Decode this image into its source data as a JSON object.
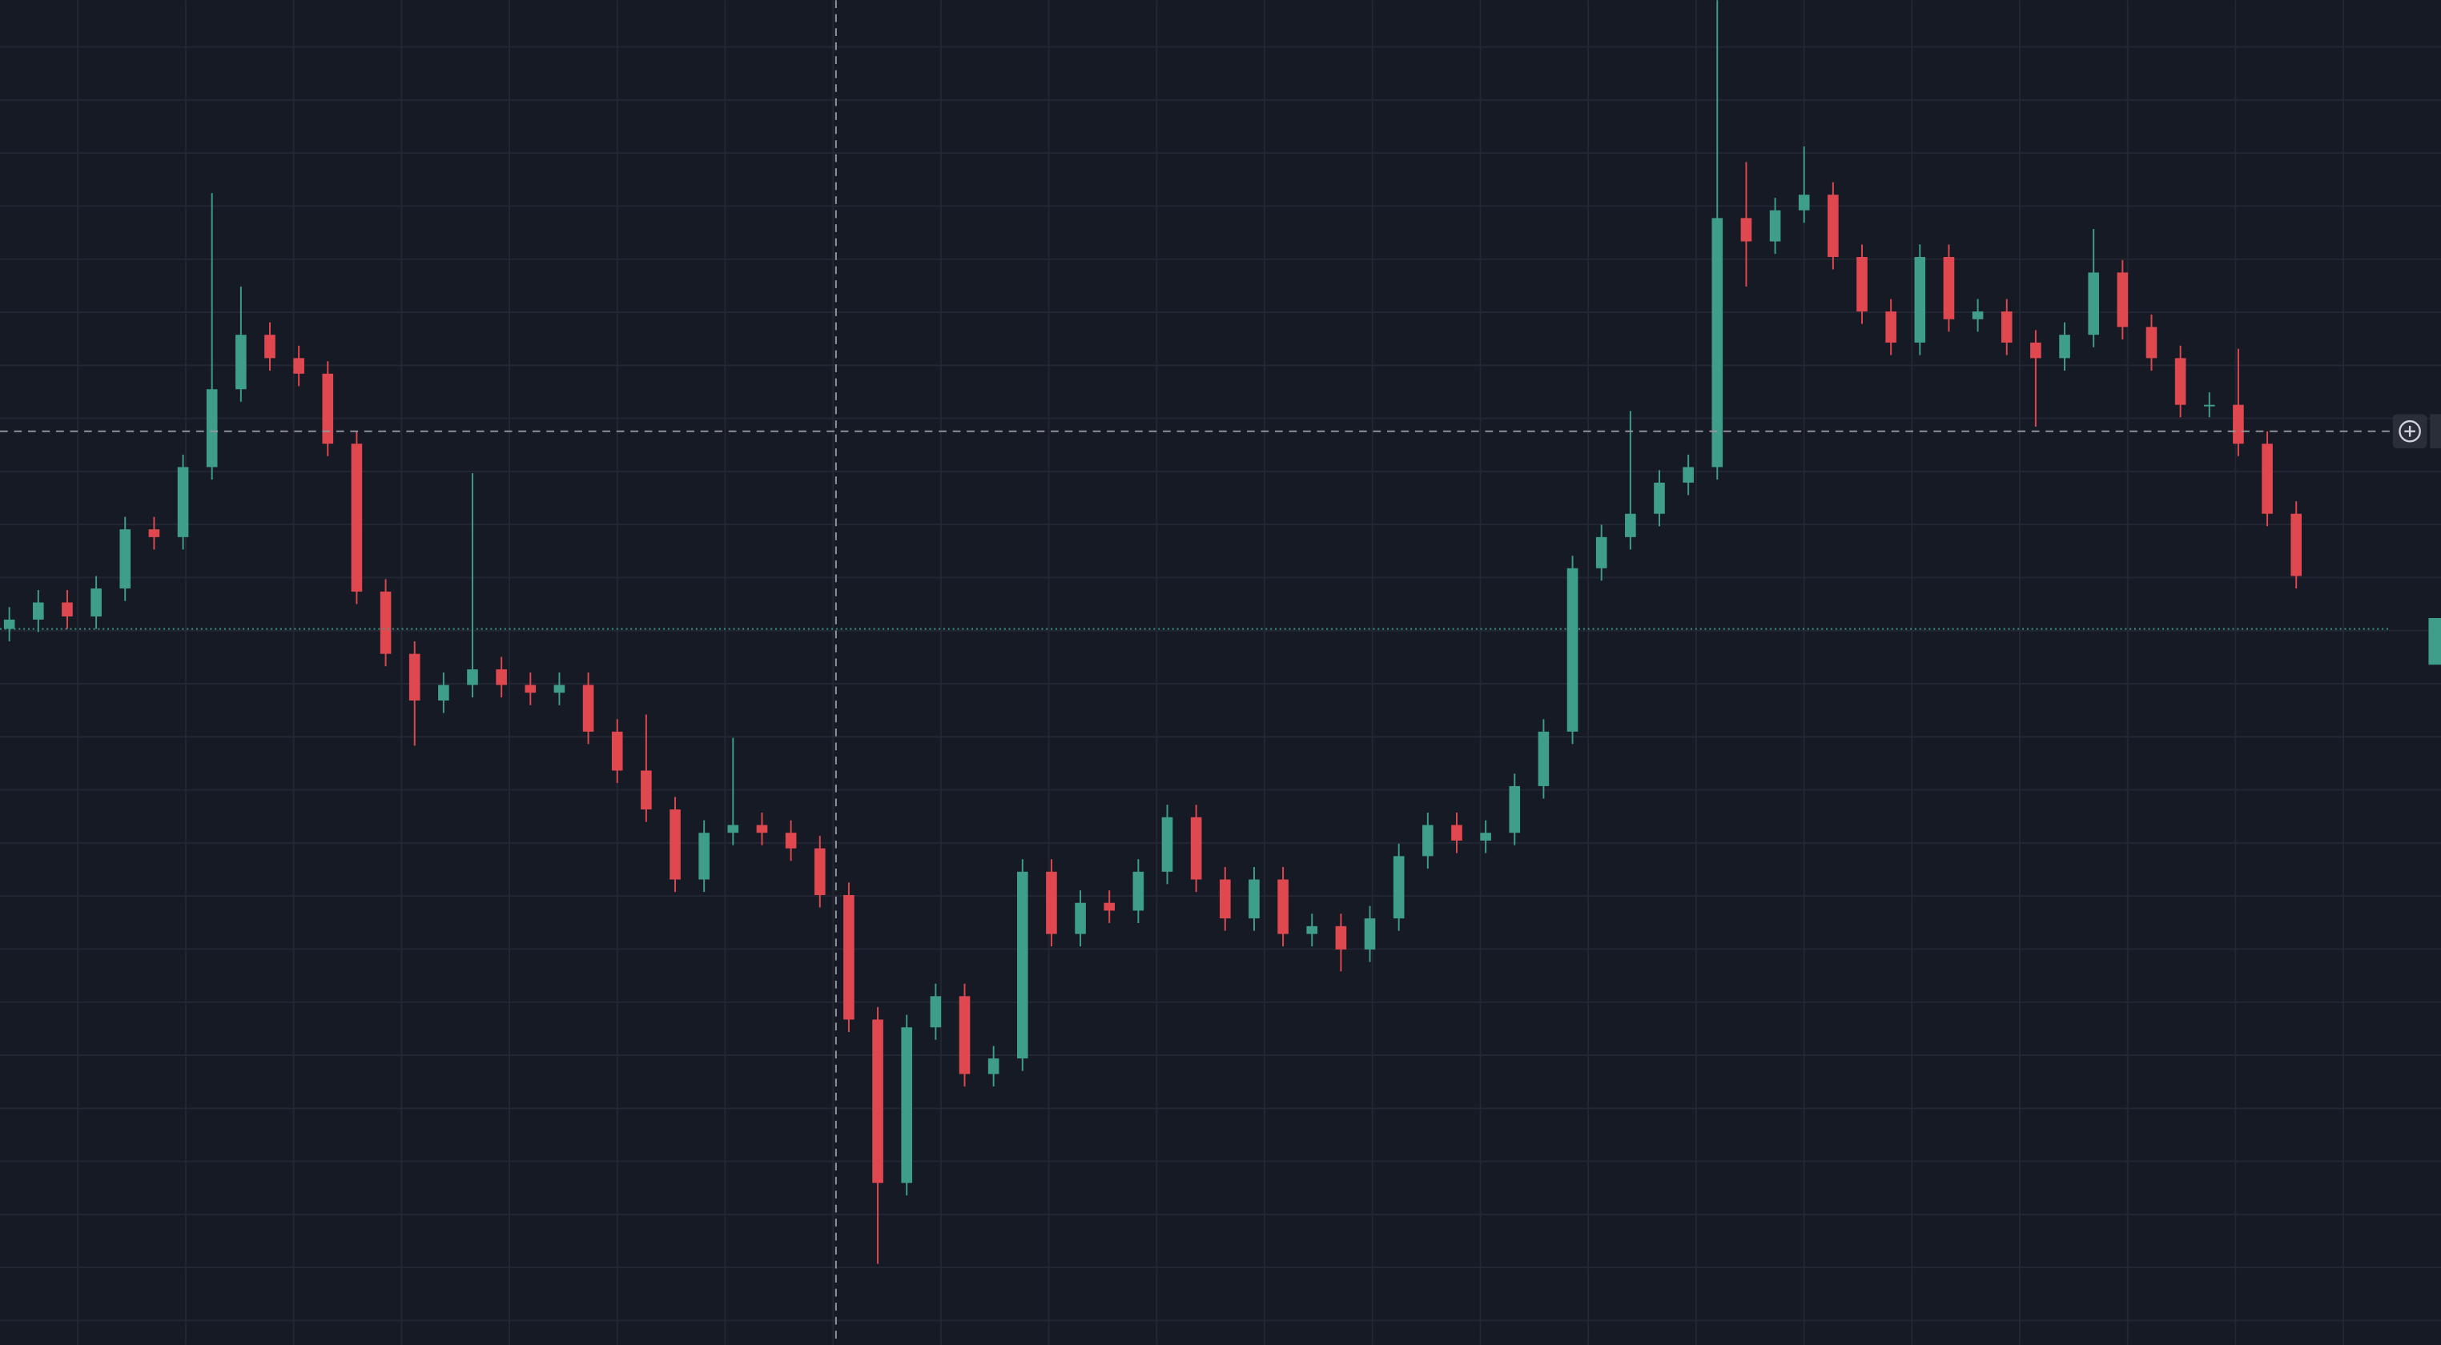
{
  "chart_data": {
    "type": "candlestick",
    "open": [
      460,
      466,
      477,
      468,
      486,
      524,
      519,
      564,
      614,
      649,
      634,
      624,
      579,
      484,
      444,
      414,
      424,
      434,
      424,
      419,
      424,
      394,
      369,
      344,
      299,
      329,
      334,
      329,
      319,
      289,
      209,
      104,
      204,
      224,
      174,
      184,
      304,
      264,
      284,
      279,
      304,
      339,
      299,
      274,
      299,
      264,
      269,
      254,
      274,
      314,
      334,
      324,
      329,
      359,
      394,
      499,
      519,
      534,
      554,
      564,
      724,
      709,
      729,
      739,
      699,
      664,
      644,
      699,
      659,
      664,
      644,
      634,
      649,
      689,
      654,
      634,
      604,
      604,
      579,
      534
    ],
    "high": [
      474,
      485,
      485,
      494,
      532,
      532,
      572,
      740,
      680,
      657,
      642,
      632,
      587,
      492,
      452,
      432,
      560,
      442,
      432,
      432,
      432,
      402,
      405,
      352,
      337,
      390,
      342,
      337,
      327,
      297,
      217,
      212,
      232,
      232,
      192,
      312,
      312,
      292,
      292,
      312,
      347,
      347,
      307,
      307,
      307,
      277,
      277,
      282,
      322,
      342,
      342,
      337,
      367,
      402,
      507,
      527,
      600,
      562,
      572,
      864,
      760,
      737,
      770,
      747,
      707,
      672,
      707,
      707,
      672,
      672,
      652,
      657,
      717,
      697,
      662,
      642,
      612,
      640,
      587,
      542
    ],
    "low": [
      452,
      458,
      460,
      460,
      478,
      511,
      511,
      556,
      606,
      626,
      616,
      571,
      476,
      436,
      385,
      406,
      416,
      416,
      411,
      411,
      386,
      361,
      336,
      291,
      291,
      321,
      321,
      311,
      281,
      201,
      52,
      96,
      196,
      166,
      166,
      176,
      256,
      256,
      271,
      271,
      296,
      291,
      266,
      266,
      256,
      256,
      240,
      246,
      266,
      306,
      316,
      316,
      321,
      351,
      386,
      491,
      511,
      526,
      546,
      556,
      680,
      701,
      721,
      691,
      656,
      636,
      636,
      651,
      651,
      636,
      590,
      626,
      641,
      646,
      626,
      596,
      596,
      571,
      526,
      486
    ],
    "close": [
      466,
      477,
      468,
      486,
      524,
      519,
      564,
      614,
      649,
      634,
      624,
      579,
      484,
      444,
      414,
      424,
      434,
      424,
      419,
      424,
      394,
      369,
      344,
      299,
      329,
      334,
      329,
      319,
      289,
      209,
      104,
      204,
      224,
      174,
      184,
      304,
      264,
      284,
      279,
      304,
      339,
      299,
      274,
      299,
      264,
      269,
      254,
      274,
      314,
      334,
      324,
      329,
      359,
      394,
      499,
      519,
      534,
      554,
      564,
      724,
      709,
      729,
      739,
      699,
      664,
      644,
      699,
      659,
      664,
      644,
      634,
      649,
      689,
      654,
      634,
      604,
      604,
      579,
      534,
      494
    ],
    "up_color": "#3f9e8a",
    "down_color": "#e04850",
    "ylim": [
      0,
      864
    ],
    "grid": true
  }
}
